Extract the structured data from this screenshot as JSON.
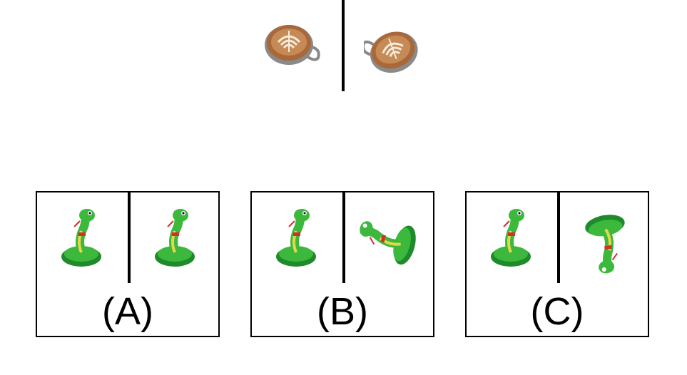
{
  "reference": {
    "left_image": "latte-cup-icon",
    "right_image": "latte-cup-rotated-icon"
  },
  "options": [
    {
      "label": "(A)",
      "left_image": "snake-icon",
      "right_image": "snake-icon"
    },
    {
      "label": "(B)",
      "left_image": "snake-icon",
      "right_image": "snake-rotated-icon"
    },
    {
      "label": "(C)",
      "left_image": "snake-icon",
      "right_image": "snake-rotated-icon"
    }
  ],
  "colors": {
    "snake_green": "#3cb83c",
    "snake_dark": "#1f8a2a",
    "snake_yellow": "#e3d84a",
    "latte_brown": "#a9683a",
    "cup_grey": "#9a9a9a"
  }
}
